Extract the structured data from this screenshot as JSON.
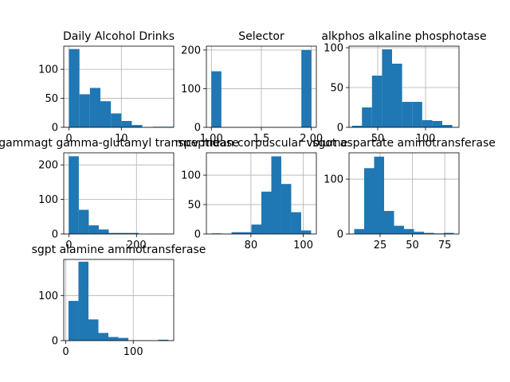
{
  "figure": {
    "bar_color": "#1f77b4",
    "edge_color": "#000000",
    "grid_color": "#b0b0b0",
    "background": "#ffffff"
  },
  "chart_data": [
    {
      "type": "bar",
      "title": "Daily Alcohol Drinks",
      "xlim": [
        -1,
        20
      ],
      "ylim": [
        0,
        140
      ],
      "xticks": [
        {
          "value": 0,
          "label": "0"
        },
        {
          "value": 10,
          "label": "10"
        }
      ],
      "yticks": [
        {
          "value": 0,
          "label": "0"
        },
        {
          "value": 50,
          "label": "50"
        },
        {
          "value": 100,
          "label": "100"
        }
      ],
      "bins": [
        {
          "x0": 0,
          "x1": 2,
          "count": 135
        },
        {
          "x0": 2,
          "x1": 4,
          "count": 57
        },
        {
          "x0": 4,
          "x1": 6,
          "count": 68
        },
        {
          "x0": 6,
          "x1": 8,
          "count": 45
        },
        {
          "x0": 8,
          "x1": 10,
          "count": 24
        },
        {
          "x0": 10,
          "x1": 12,
          "count": 11
        },
        {
          "x0": 12,
          "x1": 14,
          "count": 4
        },
        {
          "x0": 14,
          "x1": 16,
          "count": 0
        },
        {
          "x0": 16,
          "x1": 18,
          "count": 1
        },
        {
          "x0": 18,
          "x1": 20,
          "count": 1
        }
      ],
      "grid": true
    },
    {
      "type": "bar",
      "title": "Selector",
      "xlim": [
        0.95,
        2.05
      ],
      "ylim": [
        0,
        210
      ],
      "xticks": [
        {
          "value": 1.0,
          "label": "1.00"
        },
        {
          "value": 1.5,
          "label": "1.5"
        },
        {
          "value": 2.0,
          "label": "2.00"
        }
      ],
      "yticks": [
        {
          "value": 0,
          "label": "0"
        },
        {
          "value": 100,
          "label": "100"
        },
        {
          "value": 200,
          "label": "200"
        }
      ],
      "bins": [
        {
          "x0": 1.0,
          "x1": 1.1,
          "count": 145
        },
        {
          "x0": 1.9,
          "x1": 2.0,
          "count": 200
        }
      ],
      "grid": true
    },
    {
      "type": "bar",
      "title": "alkphos alkaline phosphotase",
      "xlim": [
        20,
        135
      ],
      "ylim": [
        0,
        102
      ],
      "xticks": [
        {
          "value": 50,
          "label": "50"
        },
        {
          "value": 100,
          "label": "100"
        }
      ],
      "yticks": [
        {
          "value": 0,
          "label": "0"
        },
        {
          "value": 50,
          "label": "50"
        },
        {
          "value": 100,
          "label": "100"
        }
      ],
      "bins": [
        {
          "x0": 23,
          "x1": 33.5,
          "count": 2
        },
        {
          "x0": 33.5,
          "x1": 44,
          "count": 25
        },
        {
          "x0": 44,
          "x1": 54.5,
          "count": 65
        },
        {
          "x0": 54.5,
          "x1": 65,
          "count": 98
        },
        {
          "x0": 65,
          "x1": 75.5,
          "count": 80
        },
        {
          "x0": 75.5,
          "x1": 86,
          "count": 32
        },
        {
          "x0": 86,
          "x1": 96.5,
          "count": 32
        },
        {
          "x0": 96.5,
          "x1": 107,
          "count": 9
        },
        {
          "x0": 107,
          "x1": 117.5,
          "count": 8
        },
        {
          "x0": 117.5,
          "x1": 128,
          "count": 3
        }
      ],
      "grid": true
    },
    {
      "type": "bar",
      "title": "gammagt gamma-glutamyl transpeptidase",
      "xlim": [
        -15,
        310
      ],
      "ylim": [
        0,
        235
      ],
      "xticks": [
        {
          "value": 0,
          "label": "0"
        },
        {
          "value": 200,
          "label": "200"
        }
      ],
      "yticks": [
        {
          "value": 0,
          "label": "0"
        },
        {
          "value": 100,
          "label": "100"
        },
        {
          "value": 200,
          "label": "200"
        }
      ],
      "bins": [
        {
          "x0": 0,
          "x1": 29.5,
          "count": 225
        },
        {
          "x0": 29.5,
          "x1": 59,
          "count": 70
        },
        {
          "x0": 59,
          "x1": 88.5,
          "count": 25
        },
        {
          "x0": 88.5,
          "x1": 118,
          "count": 13
        },
        {
          "x0": 118,
          "x1": 147.5,
          "count": 3
        },
        {
          "x0": 147.5,
          "x1": 177,
          "count": 3
        },
        {
          "x0": 177,
          "x1": 206.5,
          "count": 3
        },
        {
          "x0": 206.5,
          "x1": 236,
          "count": 0
        },
        {
          "x0": 236,
          "x1": 265.5,
          "count": 1
        },
        {
          "x0": 265.5,
          "x1": 295,
          "count": 1
        }
      ],
      "grid": true
    },
    {
      "type": "bar",
      "title": "mcv mean corpuscular volume",
      "xlim": [
        63,
        105
      ],
      "ylim": [
        0,
        138
      ],
      "xticks": [
        {
          "value": 80,
          "label": "80"
        },
        {
          "value": 100,
          "label": "100"
        }
      ],
      "yticks": [
        {
          "value": 0,
          "label": "0"
        },
        {
          "value": 50,
          "label": "50"
        },
        {
          "value": 100,
          "label": "100"
        }
      ],
      "bins": [
        {
          "x0": 65,
          "x1": 68.8,
          "count": 1
        },
        {
          "x0": 68.8,
          "x1": 72.6,
          "count": 0
        },
        {
          "x0": 72.6,
          "x1": 76.4,
          "count": 3
        },
        {
          "x0": 76.4,
          "x1": 80.2,
          "count": 3
        },
        {
          "x0": 80.2,
          "x1": 84,
          "count": 16
        },
        {
          "x0": 84,
          "x1": 87.8,
          "count": 72
        },
        {
          "x0": 87.8,
          "x1": 91.6,
          "count": 132
        },
        {
          "x0": 91.6,
          "x1": 95.4,
          "count": 85
        },
        {
          "x0": 95.4,
          "x1": 99.2,
          "count": 37
        },
        {
          "x0": 99.2,
          "x1": 103,
          "count": 6
        }
      ],
      "grid": true
    },
    {
      "type": "bar",
      "title": "sgot aspartate aminotransferase",
      "xlim": [
        1,
        86
      ],
      "ylim": [
        0,
        148
      ],
      "xticks": [
        {
          "value": 25,
          "label": "25"
        },
        {
          "value": 50,
          "label": "50"
        },
        {
          "value": 75,
          "label": "75"
        }
      ],
      "yticks": [
        {
          "value": 0,
          "label": "0"
        },
        {
          "value": 100,
          "label": "100"
        }
      ],
      "bins": [
        {
          "x0": 5,
          "x1": 12.7,
          "count": 9
        },
        {
          "x0": 12.7,
          "x1": 20.4,
          "count": 120
        },
        {
          "x0": 20.4,
          "x1": 28.1,
          "count": 141
        },
        {
          "x0": 28.1,
          "x1": 35.8,
          "count": 42
        },
        {
          "x0": 35.8,
          "x1": 43.5,
          "count": 15
        },
        {
          "x0": 43.5,
          "x1": 51.2,
          "count": 9
        },
        {
          "x0": 51.2,
          "x1": 58.9,
          "count": 4
        },
        {
          "x0": 58.9,
          "x1": 66.6,
          "count": 2
        },
        {
          "x0": 66.6,
          "x1": 74.3,
          "count": 1
        },
        {
          "x0": 74.3,
          "x1": 82,
          "count": 2
        }
      ],
      "grid": true
    },
    {
      "type": "bar",
      "title": "sgpt alamine aminotransferase",
      "xlim": [
        -3,
        160
      ],
      "ylim": [
        0,
        180
      ],
      "xticks": [
        {
          "value": 0,
          "label": "0"
        },
        {
          "value": 100,
          "label": "100"
        }
      ],
      "yticks": [
        {
          "value": 0,
          "label": "0"
        },
        {
          "value": 100,
          "label": "100"
        }
      ],
      "bins": [
        {
          "x0": 4,
          "x1": 18.8,
          "count": 88
        },
        {
          "x0": 18.8,
          "x1": 33.6,
          "count": 175
        },
        {
          "x0": 33.6,
          "x1": 48.4,
          "count": 47
        },
        {
          "x0": 48.4,
          "x1": 63.2,
          "count": 17
        },
        {
          "x0": 63.2,
          "x1": 78,
          "count": 8
        },
        {
          "x0": 78,
          "x1": 92.8,
          "count": 6
        },
        {
          "x0": 92.8,
          "x1": 107.6,
          "count": 0
        },
        {
          "x0": 107.6,
          "x1": 122.4,
          "count": 0
        },
        {
          "x0": 122.4,
          "x1": 137.2,
          "count": 0
        },
        {
          "x0": 137.2,
          "x1": 152,
          "count": 2
        }
      ],
      "grid": true
    }
  ]
}
